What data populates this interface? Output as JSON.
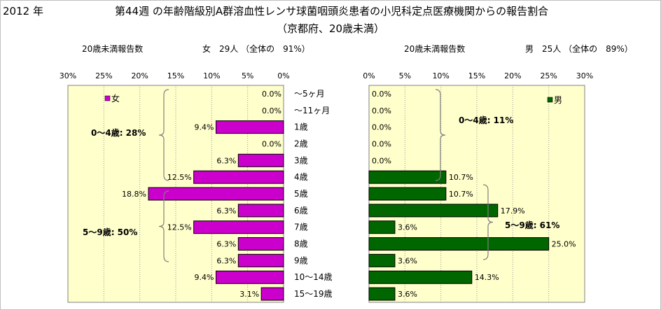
{
  "header": {
    "year": "2012 年",
    "title_line1": "第44週 の年齢階級別A群溶血性レンサ球菌咽頭炎患者の小児科定点医療機関からの報告割合",
    "title_line2": "（京都府、20歳未満）",
    "left_count_label": "20歳未満報告数",
    "left_summary": "女　29人 （全体の　91%）",
    "right_count_label": "20歳未満報告数",
    "right_summary": "男　25人 （全体の　89%）"
  },
  "colors": {
    "female_bar": "#cc00cc",
    "male_bar": "#006600",
    "plot_bg": "#ffffcc",
    "grid": "#999999"
  },
  "chart_data": [
    {
      "type": "bar",
      "orientation": "horizontal",
      "x_direction": "reversed",
      "categories": [
        "～5ヶ月",
        "～11ヶ月",
        "1歳",
        "2歳",
        "3歳",
        "4歳",
        "5歳",
        "6歳",
        "7歳",
        "8歳",
        "9歳",
        "10～14歳",
        "15～19歳"
      ],
      "series": [
        {
          "name": "女",
          "values": [
            0.0,
            0.0,
            9.4,
            0.0,
            6.3,
            12.5,
            18.8,
            6.3,
            12.5,
            6.3,
            6.3,
            9.4,
            3.1
          ]
        }
      ],
      "value_labels": [
        "0.0%",
        "0.0%",
        "9.4%",
        "0.0%",
        "6.3%",
        "12.5%",
        "18.8%",
        "6.3%",
        "12.5%",
        "6.3%",
        "6.3%",
        "9.4%",
        "3.1%"
      ],
      "xlim": [
        0,
        30
      ],
      "xticks": [
        "0%",
        "5%",
        "10%",
        "15%",
        "20%",
        "25%",
        "30%"
      ],
      "grid": true,
      "legend": "top-left",
      "annotations": [
        "0～4歳: 28%",
        "5～9歳: 50%"
      ]
    },
    {
      "type": "bar",
      "orientation": "horizontal",
      "categories": [
        "～5ヶ月",
        "～11ヶ月",
        "1歳",
        "2歳",
        "3歳",
        "4歳",
        "5歳",
        "6歳",
        "7歳",
        "8歳",
        "9歳",
        "10～14歳",
        "15～19歳"
      ],
      "series": [
        {
          "name": "男",
          "values": [
            0.0,
            0.0,
            0.0,
            0.0,
            0.0,
            10.7,
            10.7,
            17.9,
            3.6,
            25.0,
            3.6,
            14.3,
            3.6
          ]
        }
      ],
      "value_labels": [
        "0.0%",
        "0.0%",
        "0.0%",
        "0.0%",
        "0.0%",
        "10.7%",
        "10.7%",
        "17.9%",
        "3.6%",
        "25.0%",
        "3.6%",
        "14.3%",
        "3.6%"
      ],
      "xlim": [
        0,
        30
      ],
      "xticks": [
        "0%",
        "5%",
        "10%",
        "15%",
        "20%",
        "25%",
        "30%"
      ],
      "grid": true,
      "legend": "top-right",
      "annotations": [
        "0～4歳: 11%",
        "5～9歳: 61%"
      ]
    }
  ]
}
